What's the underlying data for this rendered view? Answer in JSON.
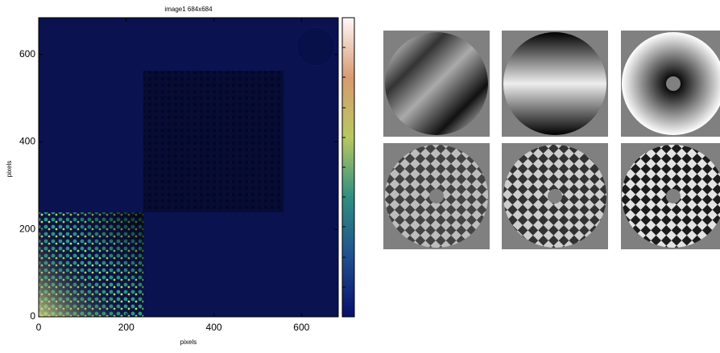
{
  "chart_data": {
    "type": "image",
    "title": "image1 684x684",
    "xlabel": "pixels",
    "ylabel": "pixels",
    "xlim": [
      0,
      684
    ],
    "ylim": [
      0,
      684
    ],
    "xticks": [
      0,
      200,
      400,
      600
    ],
    "yticks": [
      0,
      200,
      400,
      600
    ]
  }
}
